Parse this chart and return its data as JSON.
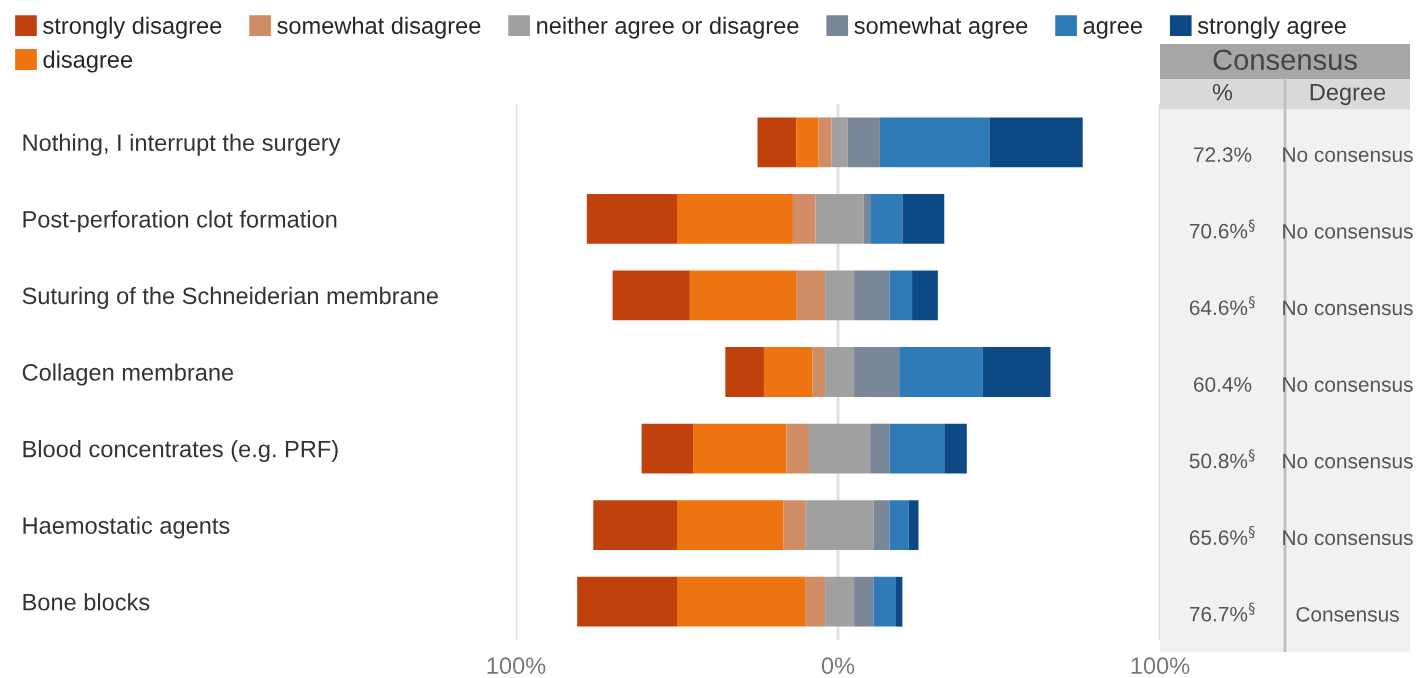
{
  "chart_data": [
    {
      "type": "bar",
      "orientation": "horizontal",
      "categories": [
        "Nothing, I interrupt the surgery",
        "Post-perforation clot formation",
        "Suturing of the Schneiderian membrane",
        "Collagen membrane",
        "Blood concentrates (e.g. PRF)",
        "Haemostatic agents",
        "Bone blocks"
      ],
      "series": [
        {
          "name": "strongly disagree",
          "color": "#c0410b",
          "base": [
            -25,
            -78,
            -70,
            -35,
            -61,
            -76,
            -81
          ],
          "values": [
            12,
            28,
            24,
            12,
            16,
            26,
            31
          ]
        },
        {
          "name": "disagree",
          "color": "#ed7411",
          "base": [
            -13,
            -50,
            -46,
            -23,
            -45,
            -50,
            -50
          ],
          "values": [
            7,
            36,
            33,
            15,
            29,
            33,
            40
          ]
        },
        {
          "name": "somewhat disagree",
          "color": "#d08c64",
          "base": [
            -6,
            -14,
            -13,
            -8,
            -16,
            -17,
            -10
          ],
          "values": [
            4,
            7,
            9,
            4,
            7,
            7,
            6
          ]
        },
        {
          "name": "neither agree or disagree",
          "color": "#a0a0a0",
          "base": [
            -2,
            -7,
            -4,
            -4,
            -9,
            -10,
            -4
          ],
          "values": [
            5,
            15,
            9,
            9,
            19,
            21,
            9
          ]
        },
        {
          "name": "somewhat agree",
          "color": "#7a8799",
          "base": [
            3,
            8,
            5,
            5,
            10,
            11,
            5
          ],
          "values": [
            10,
            2,
            11,
            14,
            6,
            5,
            6
          ]
        },
        {
          "name": "agree",
          "color": "#2f7bb8",
          "base": [
            13,
            10,
            16,
            19,
            16,
            16,
            11
          ],
          "values": [
            34,
            10,
            7,
            26,
            17,
            6,
            7
          ]
        },
        {
          "name": "strongly agree",
          "color": "#0d4a85",
          "base": [
            47,
            20,
            23,
            45,
            33,
            22,
            18
          ],
          "values": [
            29,
            13,
            8,
            21,
            7,
            3,
            2
          ]
        }
      ],
      "xlim": [
        -100,
        100
      ],
      "xticks": [
        {
          "value": -100,
          "label": "100%"
        },
        {
          "value": 0,
          "label": "0%"
        },
        {
          "value": 100,
          "label": "100%"
        }
      ],
      "grid": "x",
      "legend": "top"
    },
    {
      "type": "other",
      "title": "Consensus",
      "categories": [
        "%",
        "Degree"
      ],
      "annotations": [
        "72.3%",
        "No consensus",
        "70.6%$^{§}$",
        "No consensus",
        "64.6%$^{§}$",
        "No consensus",
        "60.4%",
        "No consensus",
        "50.8%$^{§}$",
        "No consensus",
        "65.6%$^{§}$",
        "No consensus",
        "76.7%$^{§}$",
        "Consensus"
      ]
    }
  ]
}
